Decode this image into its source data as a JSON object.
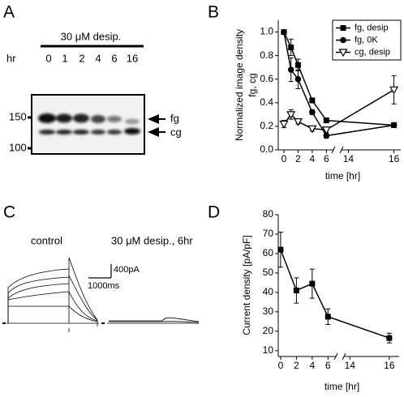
{
  "panel_labels": [
    "A",
    "B",
    "C",
    "D"
  ],
  "blot": {
    "treatment": "30 μM desip.",
    "time_label": "hr",
    "lanes": [
      "0",
      "1",
      "2",
      "4",
      "6",
      "16"
    ],
    "markers": [
      "150",
      "100"
    ],
    "bands": [
      "fg",
      "cg"
    ]
  },
  "traces": {
    "labels": [
      "control",
      "30 μM desip., 6hr"
    ],
    "scale_current": "400pA",
    "scale_time": "1000ms"
  },
  "chart_data": [
    {
      "type": "line",
      "ylabel": [
        "Normalized image density",
        "fg, cg"
      ],
      "xlabel": "time [hr]",
      "x": [
        0,
        1,
        2,
        4,
        6,
        16
      ],
      "xlim": [
        -0.8,
        16.3
      ],
      "x_break": [
        7,
        13.7
      ],
      "xticks": [
        0,
        2,
        4,
        6,
        14,
        16
      ],
      "ylim": [
        0,
        1.1
      ],
      "yticks": [
        {
          "value": 0,
          "label": "0.0"
        },
        0.2,
        0.4,
        0.6,
        0.8,
        {
          "value": 1,
          "label": "1.0"
        }
      ],
      "legend": "upper right",
      "series": [
        {
          "name": "fg, desip",
          "color": "#000000",
          "marker": "square",
          "values": [
            1.0,
            0.87,
            0.72,
            0.42,
            0.25,
            0.21
          ],
          "errors": [
            0.01,
            0.07,
            0.05,
            0.02,
            0.02,
            0.02
          ]
        },
        {
          "name": "fg, 0K",
          "color": "#000000",
          "marker": "circle",
          "values": [
            1.0,
            0.68,
            0.6,
            0.32,
            0.12,
            0.21
          ],
          "errors": [
            0.01,
            0.1,
            0.08,
            0.02,
            0.02,
            0.02
          ]
        },
        {
          "name": "cg, desip",
          "color": "#000000",
          "marker": "triangle-down-open",
          "values": [
            0.22,
            0.3,
            0.24,
            0.18,
            0.17,
            0.51
          ],
          "errors": [
            0.03,
            0.04,
            0.02,
            0.02,
            0.02,
            0.12
          ]
        }
      ]
    },
    {
      "type": "line",
      "ylabel": [
        "Current density [pA/pF]"
      ],
      "xlabel": "time [hr]",
      "x": [
        0,
        2,
        4,
        6,
        16
      ],
      "xlim": [
        -0.3,
        16.5
      ],
      "x_break": [
        7,
        13.7
      ],
      "xticks": [
        0,
        2,
        4,
        6,
        14,
        16
      ],
      "ylim": [
        7,
        80
      ],
      "yticks": [
        10,
        20,
        30,
        40,
        50,
        60,
        70,
        80
      ],
      "series": [
        {
          "color": "#000000",
          "marker": "square",
          "values": [
            62,
            41,
            44.5,
            27.5,
            16.5
          ],
          "errors": [
            9,
            6.5,
            7.5,
            4,
            2.5
          ]
        }
      ]
    }
  ]
}
